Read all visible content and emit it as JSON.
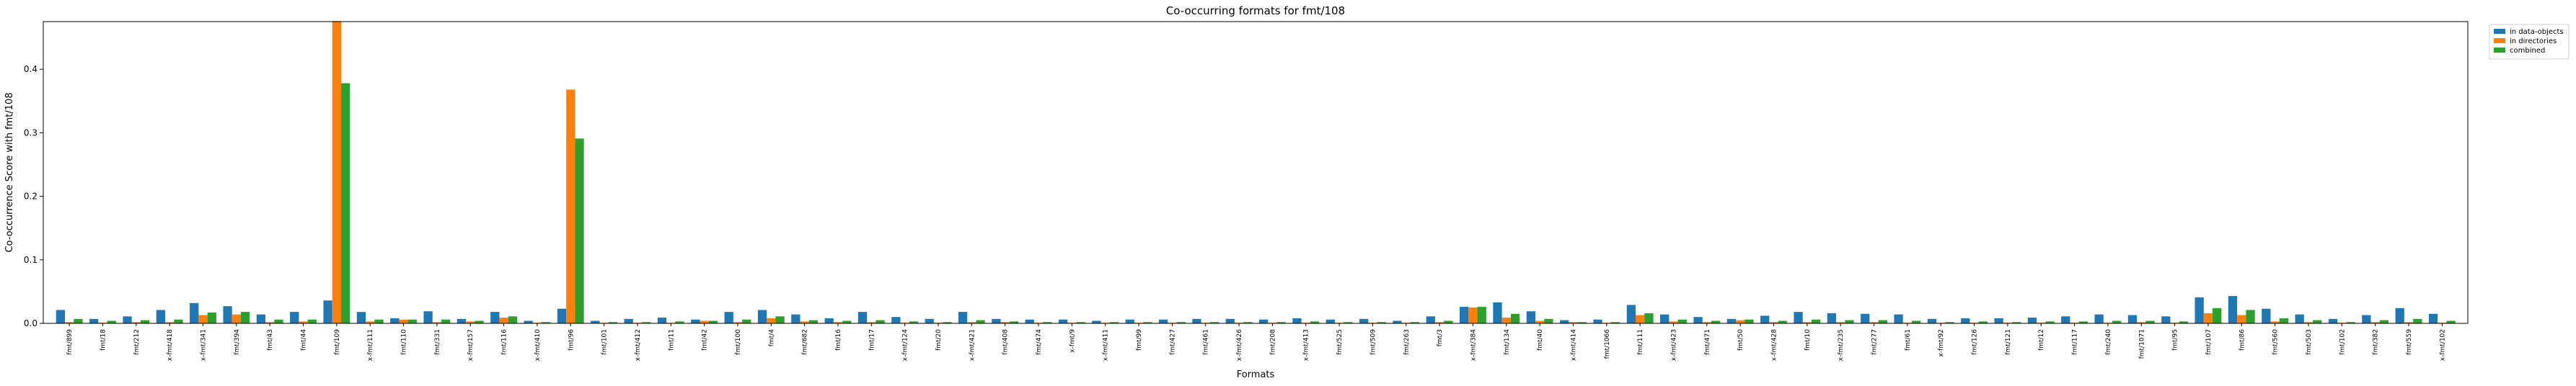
{
  "chart_data": {
    "type": "bar",
    "title": "Co-occurring formats for fmt/108",
    "xlabel": "Formats",
    "ylabel": "Co-occurrence Score with fmt/108",
    "ylim": [
      0,
      0.475
    ],
    "yticks": [
      "0.0",
      "0.1",
      "0.2",
      "0.3",
      "0.4"
    ],
    "ytick_values": [
      0,
      0.1,
      0.2,
      0.3,
      0.4
    ],
    "grid": false,
    "legend_position": "top-right, outside plot",
    "categories": [
      "fmt/899",
      "fmt/18",
      "fmt/212",
      "x-fmt/418",
      "x-fmt/341",
      "fmt/394",
      "fmt/43",
      "fmt/44",
      "fmt/109",
      "x-fmt/111",
      "fmt/110",
      "fmt/331",
      "x-fmt/157",
      "fmt/116",
      "x-fmt/410",
      "fmt/96",
      "fmt/101",
      "x-fmt/412",
      "fmt/11",
      "fmt/42",
      "fmt/100",
      "fmt/4",
      "fmt/682",
      "fmt/16",
      "fmt/17",
      "x-fmt/124",
      "fmt/20",
      "x-fmt/421",
      "fmt/408",
      "fmt/474",
      "x-fmt/9",
      "x-fmt/411",
      "fmt/99",
      "fmt/427",
      "fmt/461",
      "x-fmt/426",
      "fmt/208",
      "x-fmt/413",
      "fmt/525",
      "fmt/509",
      "fmt/263",
      "fmt/3",
      "x-fmt/384",
      "fmt/134",
      "fmt/40",
      "x-fmt/414",
      "fmt/1066",
      "fmt/111",
      "x-fmt/423",
      "fmt/471",
      "fmt/50",
      "x-fmt/428",
      "fmt/10",
      "x-fmt/235",
      "fmt/277",
      "fmt/61",
      "x-fmt/92",
      "fmt/126",
      "fmt/121",
      "fmt/12",
      "fmt/117",
      "fmt/240",
      "fmt/1071",
      "fmt/95",
      "fmt/107",
      "fmt/86",
      "fmt/560",
      "fmt/503",
      "fmt/102",
      "fmt/382",
      "fmt/559",
      "x-fmt/102"
    ],
    "series": [
      {
        "name": "in data-objects",
        "color": "#1f77b4",
        "values": [
          0.021,
          0.007,
          0.011,
          0.021,
          0.032,
          0.027,
          0.014,
          0.018,
          0.036,
          0.018,
          0.008,
          0.019,
          0.007,
          0.018,
          0.004,
          0.023,
          0.004,
          0.007,
          0.009,
          0.006,
          0.018,
          0.021,
          0.014,
          0.008,
          0.018,
          0.01,
          0.007,
          0.018,
          0.007,
          0.006,
          0.006,
          0.004,
          0.006,
          0.006,
          0.007,
          0.007,
          0.006,
          0.008,
          0.006,
          0.007,
          0.004,
          0.011,
          0.026,
          0.033,
          0.019,
          0.005,
          0.006,
          0.029,
          0.014,
          0.01,
          0.007,
          0.012,
          0.018,
          0.016,
          0.015,
          0.014,
          0.007,
          0.008,
          0.008,
          0.009,
          0.011,
          0.014,
          0.013,
          0.011,
          0.041,
          0.043,
          0.023,
          0.014,
          0.007,
          0.013,
          0.024,
          0.015
        ]
      },
      {
        "name": "in directories",
        "color": "#ff7f0e",
        "values": [
          0.002,
          0.001,
          0.002,
          0.002,
          0.013,
          0.014,
          0.002,
          0.003,
          0.476,
          0.003,
          0.006,
          0.002,
          0.003,
          0.009,
          0.001,
          0.368,
          0.001,
          0.001,
          0.001,
          0.004,
          0.002,
          0.008,
          0.003,
          0.002,
          0.002,
          0.001,
          0.001,
          0.002,
          0.002,
          0.001,
          0.001,
          0.001,
          0.001,
          0.001,
          0.001,
          0.001,
          0.001,
          0.001,
          0.001,
          0.001,
          0.001,
          0.002,
          0.025,
          0.009,
          0.004,
          0.002,
          0.001,
          0.013,
          0.003,
          0.002,
          0.005,
          0.002,
          0.002,
          0.002,
          0.002,
          0.001,
          0.001,
          0.001,
          0.001,
          0.001,
          0.001,
          0.001,
          0.002,
          0.001,
          0.016,
          0.013,
          0.003,
          0.002,
          0.001,
          0.002,
          0.002,
          0.001
        ]
      },
      {
        "name": "combined",
        "color": "#2ca02c",
        "values": [
          0.007,
          0.004,
          0.005,
          0.006,
          0.017,
          0.018,
          0.006,
          0.006,
          0.378,
          0.006,
          0.006,
          0.006,
          0.004,
          0.011,
          0.002,
          0.291,
          0.002,
          0.002,
          0.003,
          0.004,
          0.006,
          0.011,
          0.005,
          0.004,
          0.005,
          0.003,
          0.002,
          0.005,
          0.003,
          0.002,
          0.002,
          0.002,
          0.002,
          0.002,
          0.002,
          0.002,
          0.002,
          0.003,
          0.002,
          0.002,
          0.002,
          0.004,
          0.026,
          0.015,
          0.007,
          0.002,
          0.002,
          0.016,
          0.006,
          0.004,
          0.006,
          0.004,
          0.006,
          0.005,
          0.005,
          0.004,
          0.002,
          0.003,
          0.002,
          0.003,
          0.003,
          0.004,
          0.004,
          0.003,
          0.024,
          0.021,
          0.008,
          0.005,
          0.002,
          0.005,
          0.007,
          0.004
        ]
      }
    ]
  }
}
